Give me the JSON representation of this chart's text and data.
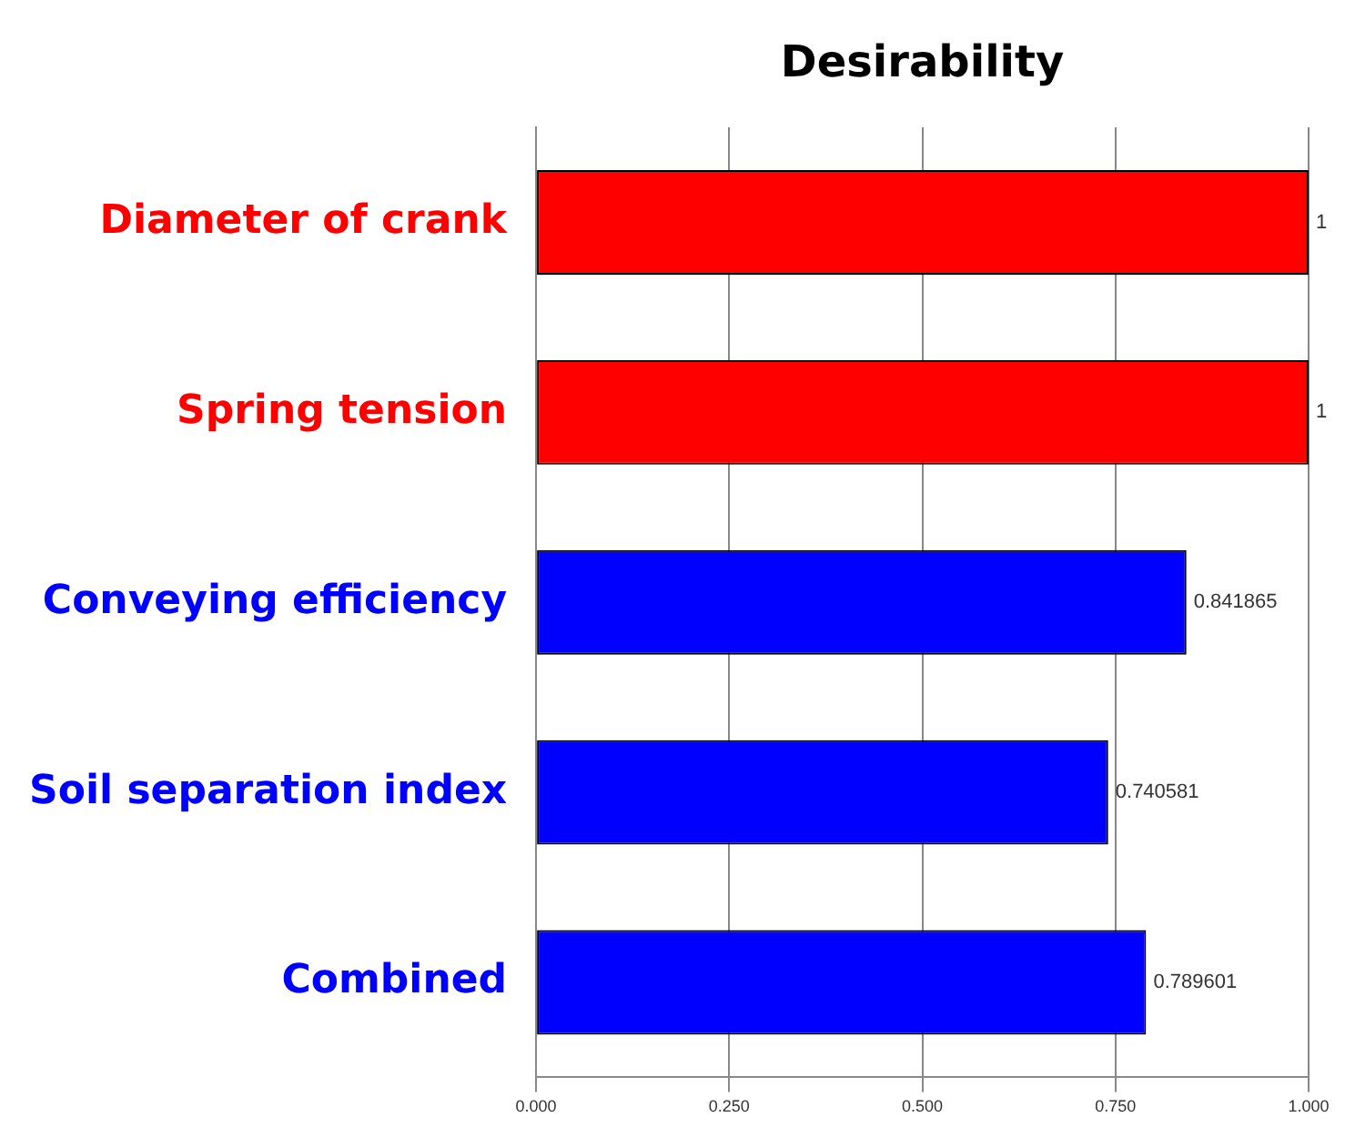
{
  "chart_data": {
    "type": "bar",
    "orientation": "horizontal",
    "title": "Desirability",
    "categories": [
      "Diameter of crank",
      "Spring tension",
      "Conveying efficiency",
      "Soil separation index",
      "Combined"
    ],
    "values": [
      1,
      1,
      0.841865,
      0.740581,
      0.789601
    ],
    "colors": [
      "#ff0000",
      "#ff0000",
      "#0000ff",
      "#0000ff",
      "#0000ff"
    ],
    "xlim": [
      0,
      1
    ],
    "xticks": [
      {
        "value": 0,
        "label": "0.000"
      },
      {
        "value": 0.25,
        "label": "0.250"
      },
      {
        "value": 0.5,
        "label": "0.500"
      },
      {
        "value": 0.75,
        "label": "0.750"
      },
      {
        "value": 1,
        "label": "1.000"
      }
    ],
    "data_labels": true,
    "grid": "x",
    "legend": false
  }
}
